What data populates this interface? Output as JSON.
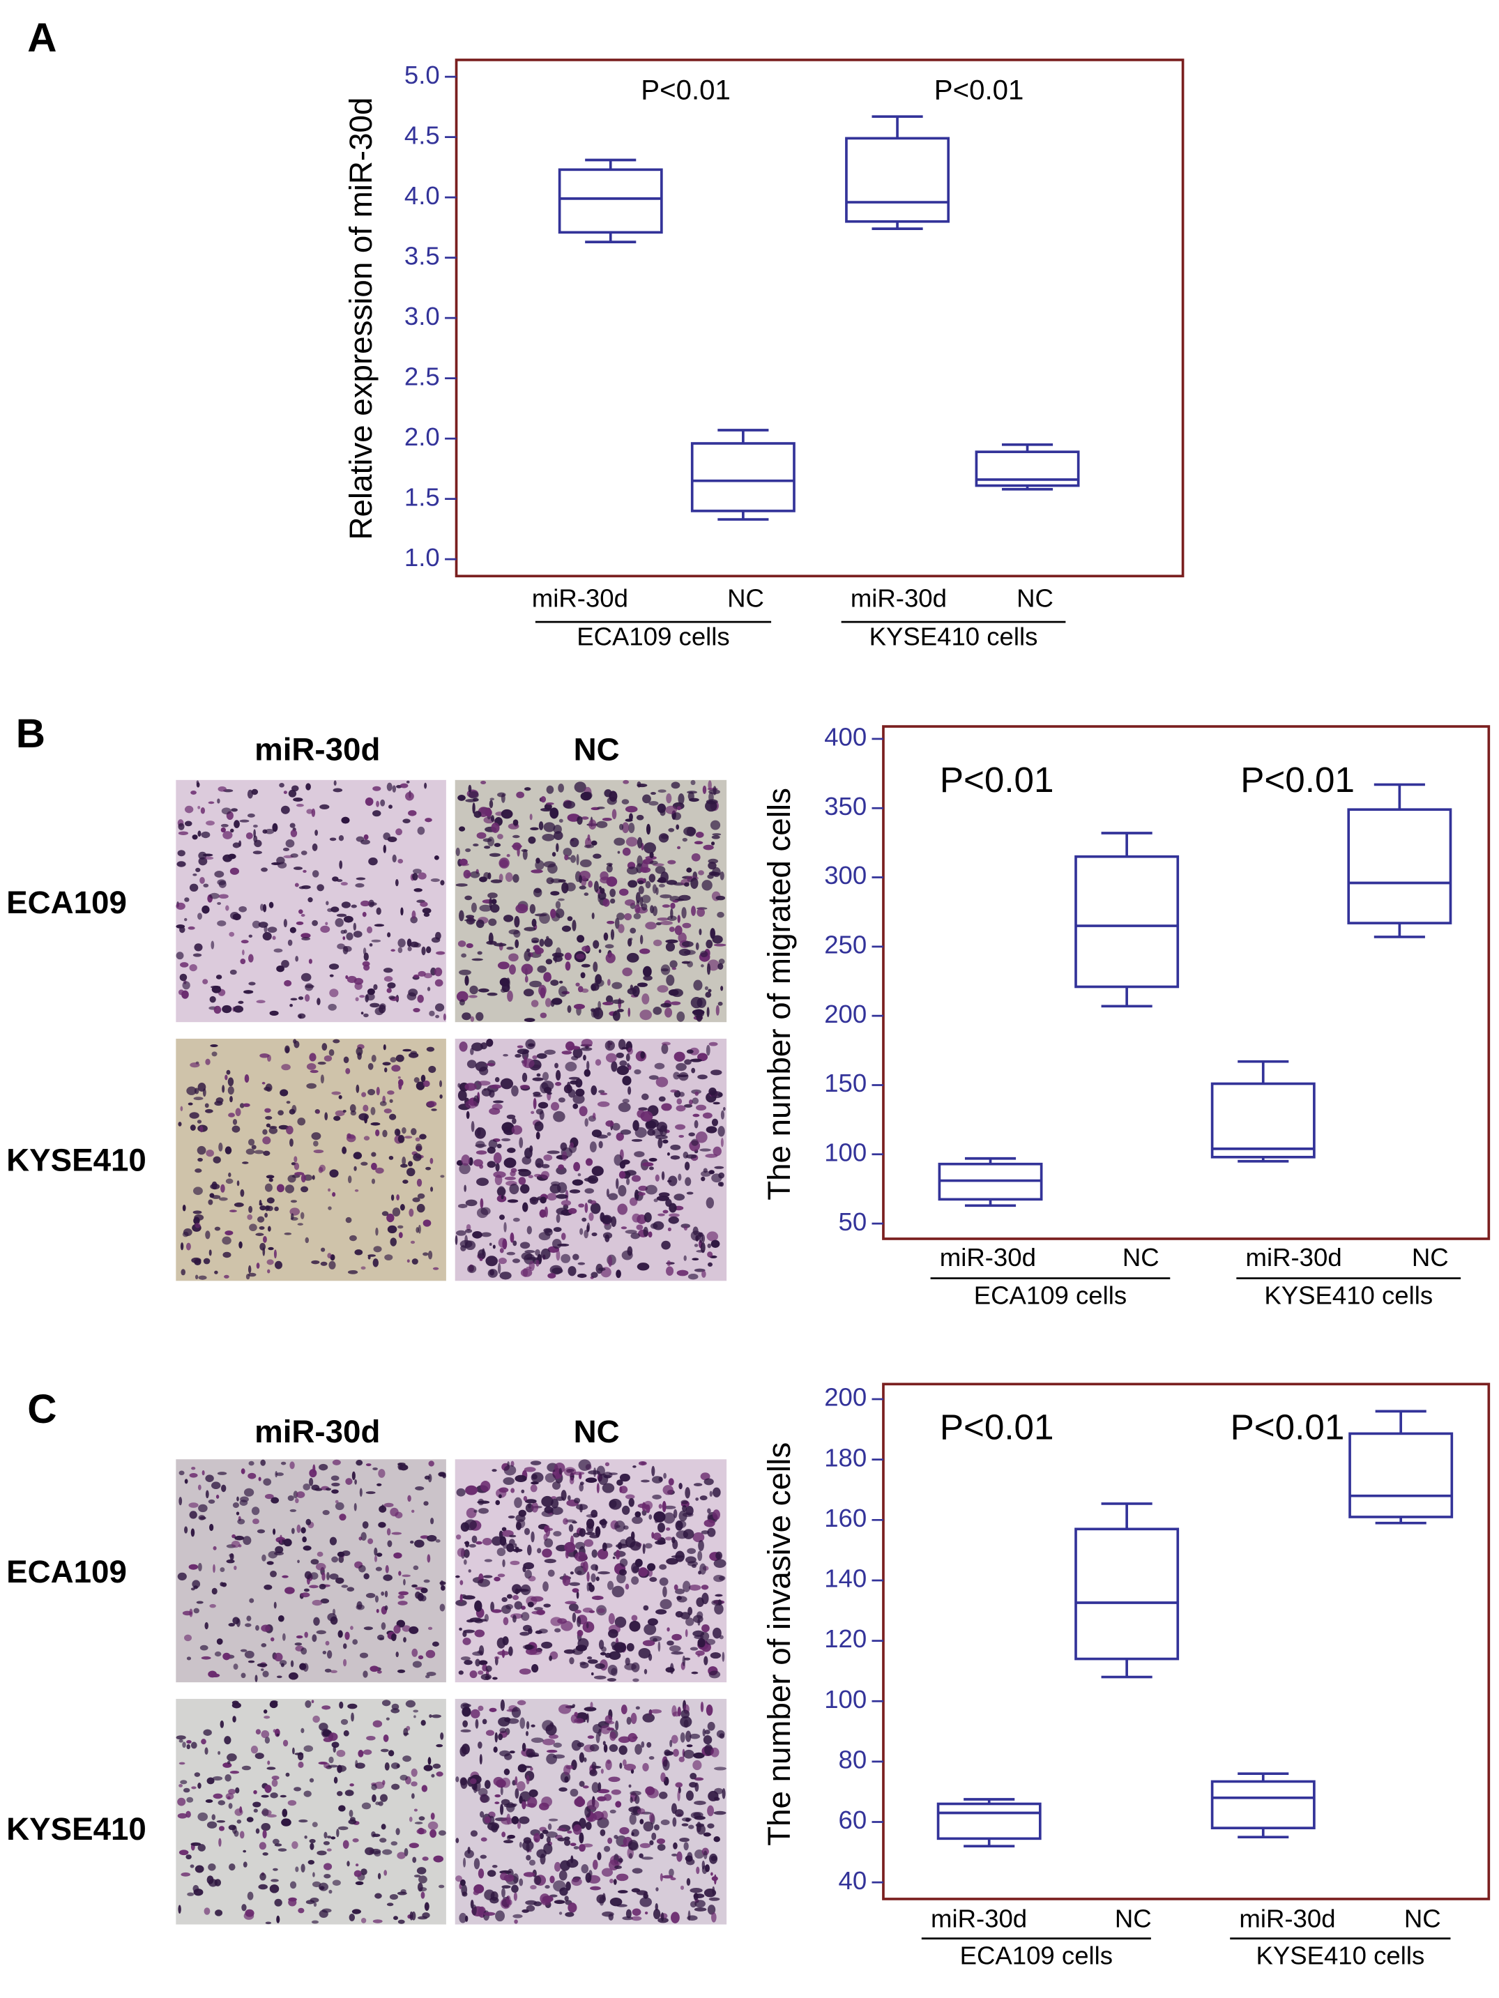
{
  "panel_labels": [
    "A",
    "B",
    "C"
  ],
  "micrographs": [
    {
      "columns": [
        "miR-30d",
        "NC"
      ],
      "rows": [
        "ECA109",
        "KYSE410"
      ]
    },
    {
      "columns": [
        "miR-30d",
        "NC"
      ],
      "rows": [
        "ECA109",
        "KYSE410"
      ]
    }
  ],
  "chart_data": [
    {
      "type": "box",
      "y_label": "Relative expression of miR-30d",
      "categories": [
        "miR-30d",
        "NC",
        "miR-30d",
        "NC"
      ],
      "groups": [
        "ECA109 cells",
        "KYSE410 cells"
      ],
      "annotations": [
        "P<0.01",
        "P<0.01"
      ],
      "boxes": [
        {
          "whislo": 3.63,
          "q1": 3.71,
          "med": 3.99,
          "q3": 4.23,
          "whishi": 4.31
        },
        {
          "whislo": 1.33,
          "q1": 1.4,
          "med": 1.65,
          "q3": 1.96,
          "whishi": 2.07
        },
        {
          "whislo": 3.74,
          "q1": 3.8,
          "med": 3.96,
          "q3": 4.49,
          "whishi": 4.67
        },
        {
          "whislo": 1.58,
          "q1": 1.61,
          "med": 1.66,
          "q3": 1.89,
          "whishi": 1.95
        }
      ],
      "ylim": [
        0.86,
        5.14
      ],
      "yticks": [
        {
          "value": 1,
          "label": "1.0"
        },
        1.5,
        {
          "value": 2,
          "label": "2.0"
        },
        2.5,
        {
          "value": 3,
          "label": "3.0"
        },
        3.5,
        {
          "value": 4,
          "label": "4.0"
        },
        4.5,
        {
          "value": 5,
          "label": "5.0"
        }
      ],
      "color": "#333399",
      "frame_color": "#7a1f1f"
    },
    {
      "type": "box",
      "y_label": "The number of migrated cells",
      "categories": [
        "miR-30d",
        "NC",
        "miR-30d",
        "NC"
      ],
      "groups": [
        "ECA109 cells",
        "KYSE410 cells"
      ],
      "annotations": [
        "P<0.01",
        "P<0.01"
      ],
      "boxes": [
        {
          "whislo": 63,
          "q1": 67.5,
          "med": 81,
          "q3": 93,
          "whishi": 97
        },
        {
          "whislo": 207,
          "q1": 221,
          "med": 265,
          "q3": 315,
          "whishi": 332
        },
        {
          "whislo": 95,
          "q1": 98,
          "med": 104,
          "q3": 151,
          "whishi": 167
        },
        {
          "whislo": 257,
          "q1": 267,
          "med": 296,
          "q3": 349,
          "whishi": 367
        }
      ],
      "ylim": [
        39,
        409
      ],
      "yticks": [
        50,
        100,
        150,
        200,
        250,
        300,
        350,
        400
      ],
      "color": "#333399",
      "frame_color": "#7a1f1f"
    },
    {
      "type": "box",
      "y_label": "The  number of invasive cells",
      "categories": [
        "miR-30d",
        "NC",
        "miR-30d",
        "NC"
      ],
      "groups": [
        "ECA109 cells",
        "KYSE410 cells"
      ],
      "annotations": [
        "P<0.01",
        "P<0.01"
      ],
      "boxes": [
        {
          "whislo": 52,
          "q1": 54.5,
          "med": 63,
          "q3": 66,
          "whishi": 67.5
        },
        {
          "whislo": 108,
          "q1": 114,
          "med": 132.6,
          "q3": 157,
          "whishi": 165.4
        },
        {
          "whislo": 55,
          "q1": 58,
          "med": 68,
          "q3": 73.4,
          "whishi": 76
        },
        {
          "whislo": 159,
          "q1": 161,
          "med": 168,
          "q3": 188.6,
          "whishi": 196
        }
      ],
      "ylim": [
        34.5,
        205
      ],
      "yticks": [
        40,
        60,
        80,
        100,
        120,
        140,
        160,
        180,
        200
      ],
      "color": "#333399",
      "frame_color": "#7a1f1f"
    }
  ]
}
